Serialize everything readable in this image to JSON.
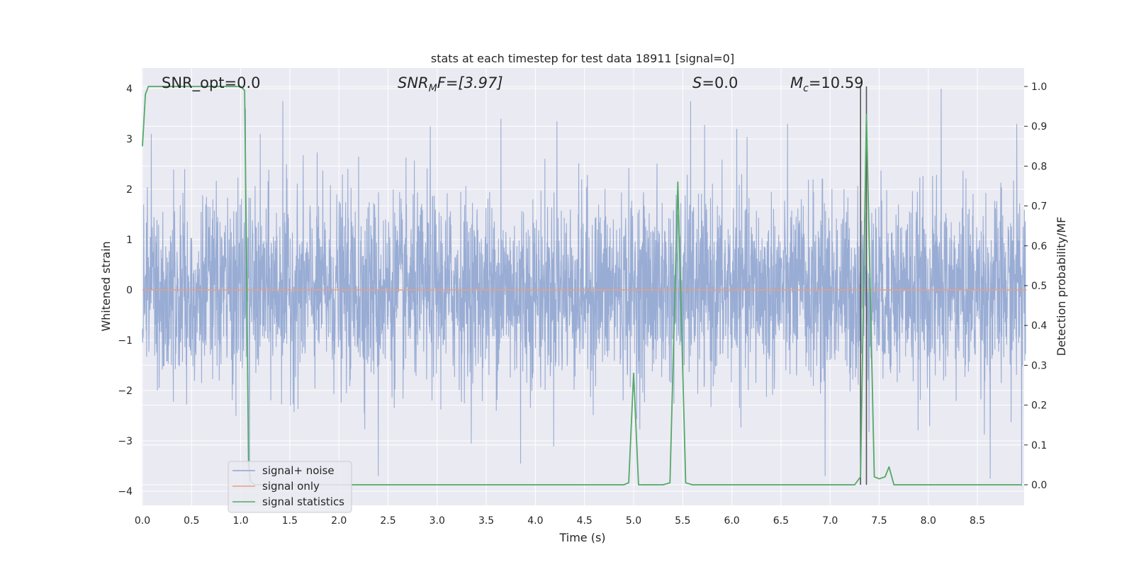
{
  "chart_data": {
    "type": "line",
    "title": "stats at each timestep for test data 18911 [signal=0]",
    "xlabel": "Time (s)",
    "ylabel_left": "Whitened strain",
    "ylabel_right": "Detection probability/MF",
    "xlim": [
      0.0,
      9.0
    ],
    "ylim_left": [
      -4.2,
      4.4
    ],
    "ylim_right": [
      -0.02,
      1.045
    ],
    "x_ticks": [
      "0.0",
      "0.5",
      "1.0",
      "1.5",
      "2.0",
      "2.5",
      "3.0",
      "3.5",
      "4.0",
      "4.5",
      "5.0",
      "5.5",
      "6.0",
      "6.5",
      "7.0",
      "7.5",
      "8.0",
      "8.5"
    ],
    "y_ticks_left": [
      "−4",
      "−3",
      "−2",
      "−1",
      "0",
      "1",
      "2",
      "3",
      "4"
    ],
    "y_ticks_right": [
      "0.0",
      "0.1",
      "0.2",
      "0.3",
      "0.4",
      "0.5",
      "0.6",
      "0.7",
      "0.8",
      "0.9",
      "1.0"
    ],
    "grid": true,
    "legend_position": "lower-left",
    "annotations": {
      "snr_opt": "SNR_opt=0.0",
      "snr_mf_main": "SNR",
      "snr_mf_sub": "M",
      "snr_mf_rest": "F=[3.97]",
      "s_main": "S",
      "s_rest": "=0.0",
      "mc_main": "M",
      "mc_sub": "c",
      "mc_rest": "=10.59"
    },
    "vertical_markers_x": [
      7.31,
      7.37
    ],
    "series": [
      {
        "name": "signal+ noise",
        "axis": "left",
        "color": "#8fa5d0",
        "description_kind": "whitened noise, amplitude mostly within ±2.5, peaks near ±3.8",
        "peaks": [
          {
            "x": 0.43,
            "y": 2.4
          },
          {
            "x": 1.05,
            "y": 3.6
          },
          {
            "x": 1.2,
            "y": 3.1
          },
          {
            "x": 1.43,
            "y": 3.75
          },
          {
            "x": 2.2,
            "y": 2.65
          },
          {
            "x": 2.93,
            "y": 3.25
          },
          {
            "x": 3.65,
            "y": 3.4
          },
          {
            "x": 4.22,
            "y": 3.35
          },
          {
            "x": 5.58,
            "y": 3.75
          },
          {
            "x": 6.05,
            "y": 3.2
          },
          {
            "x": 8.13,
            "y": 4.0
          },
          {
            "x": 8.9,
            "y": 3.3
          },
          {
            "x": 2.4,
            "y": -3.7
          },
          {
            "x": 3.85,
            "y": -3.45
          },
          {
            "x": 6.95,
            "y": -3.7
          },
          {
            "x": 8.63,
            "y": -3.75
          },
          {
            "x": 8.95,
            "y": -3.9
          },
          {
            "x": 1.09,
            "y": -3.9
          }
        ]
      },
      {
        "name": "signal only",
        "axis": "left",
        "color": "#e8a07f",
        "values_desc": "flat at 0",
        "x": [
          0.0,
          9.0
        ],
        "y": [
          0.0,
          0.0
        ]
      },
      {
        "name": "signal statistics",
        "axis": "right",
        "color": "#55a868",
        "x": [
          0.0,
          0.03,
          0.06,
          0.12,
          1.0,
          1.04,
          1.06,
          1.08,
          1.1,
          1.14,
          1.2,
          4.9,
          4.95,
          5.0,
          5.05,
          5.3,
          5.37,
          5.45,
          5.53,
          5.6,
          7.25,
          7.31,
          7.37,
          7.45,
          7.5,
          7.56,
          7.6,
          7.65,
          7.7,
          8.95
        ],
        "y": [
          0.85,
          0.98,
          1.0,
          1.0,
          1.0,
          0.99,
          0.55,
          0.05,
          0.01,
          0.0,
          0.0,
          0.0,
          0.005,
          0.28,
          0.0,
          0.0,
          0.005,
          0.76,
          0.005,
          0.0,
          0.0,
          0.02,
          0.93,
          0.02,
          0.015,
          0.02,
          0.045,
          0.0,
          0.0,
          0.0
        ]
      }
    ]
  }
}
